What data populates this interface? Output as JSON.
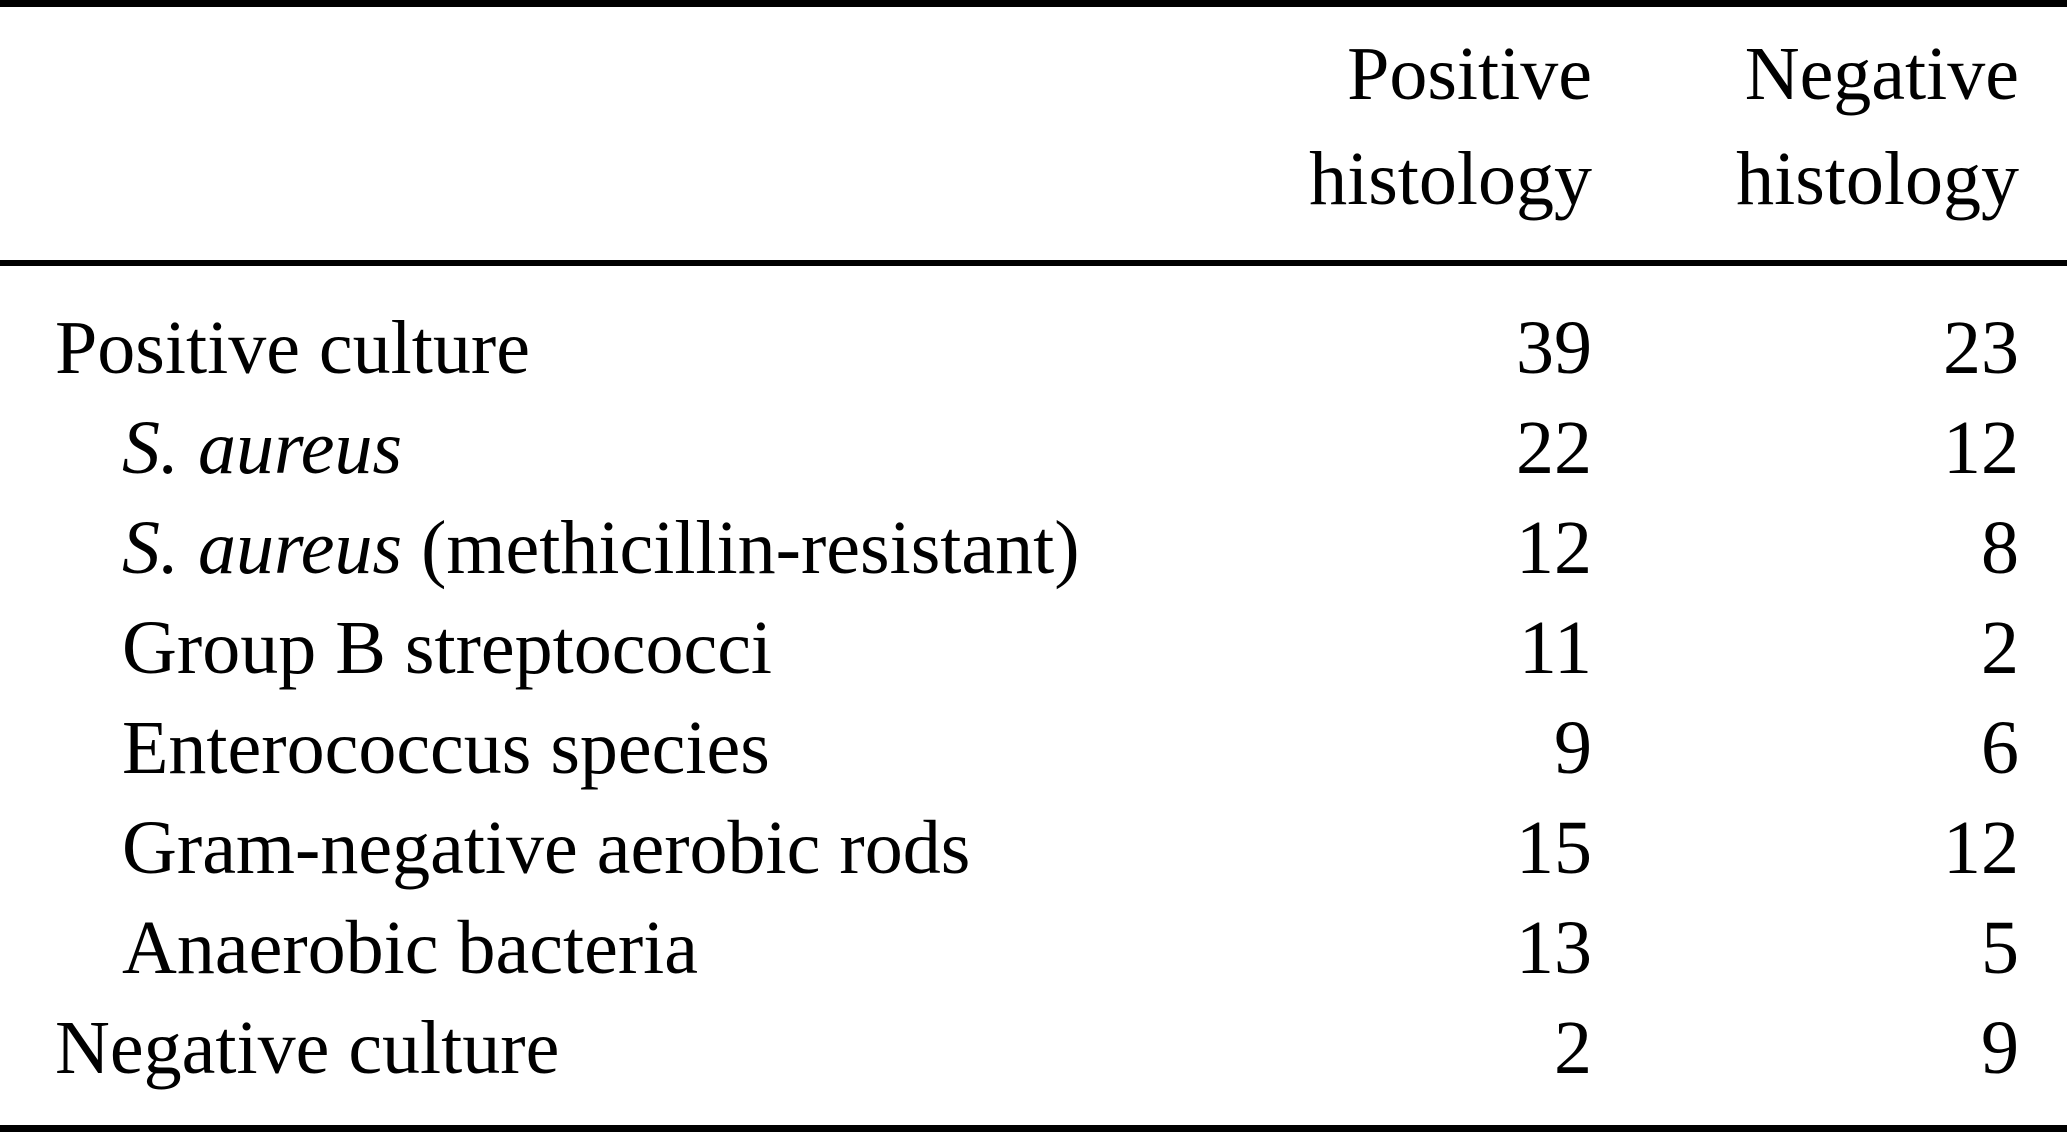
{
  "page": {
    "background": "#ffffff",
    "text_color": "#000000",
    "rule_color": "#000000"
  },
  "table": {
    "header": {
      "row_label_column": "",
      "columns": [
        {
          "label": "Positive\nhistology"
        },
        {
          "label": "Negative\nhistology"
        }
      ]
    },
    "rows": [
      {
        "level": "top",
        "label_italic": "",
        "label_roman": "Positive culture",
        "positive_histology": "39",
        "negative_histology": "23"
      },
      {
        "level": "sub",
        "label_italic": "S. aureus",
        "label_roman": "",
        "positive_histology": "22",
        "negative_histology": "12"
      },
      {
        "level": "sub",
        "label_italic": "S. aureus",
        "label_roman": " (methicillin-resistant)",
        "positive_histology": "12",
        "negative_histology": "8"
      },
      {
        "level": "sub",
        "label_italic": "",
        "label_roman": "Group B streptococci",
        "positive_histology": "11",
        "negative_histology": "2"
      },
      {
        "level": "sub",
        "label_italic": "",
        "label_roman": "Enterococcus species",
        "positive_histology": "9",
        "negative_histology": "6"
      },
      {
        "level": "sub",
        "label_italic": "",
        "label_roman": "Gram-negative aerobic rods",
        "positive_histology": "15",
        "negative_histology": "12"
      },
      {
        "level": "sub",
        "label_italic": "",
        "label_roman": "Anaerobic bacteria",
        "positive_histology": "13",
        "negative_histology": "5"
      },
      {
        "level": "top",
        "label_italic": "",
        "label_roman": "Negative culture",
        "positive_histology": "2",
        "negative_histology": "9"
      }
    ]
  }
}
